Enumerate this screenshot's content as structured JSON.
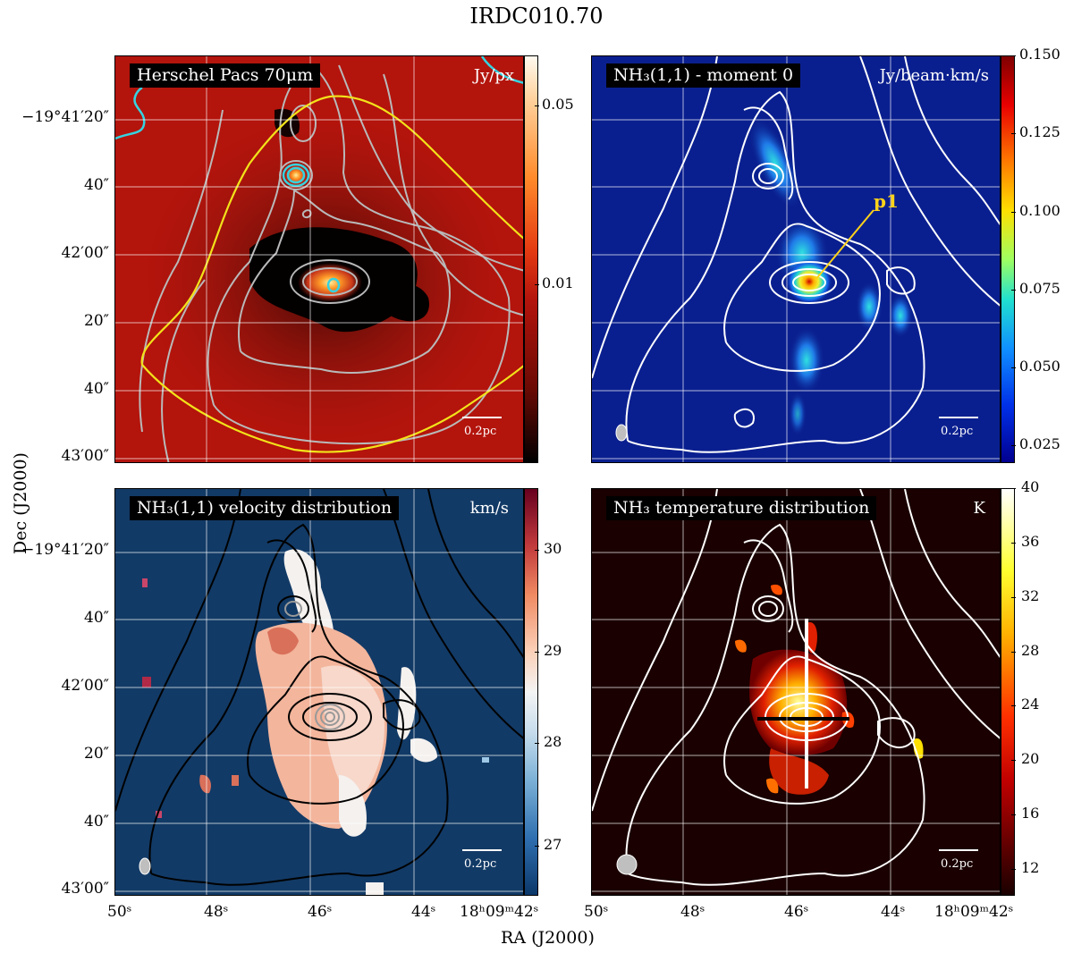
{
  "title": "IRDC010.70",
  "axes": {
    "xlabel": "RA (J2000)",
    "ylabel": "Dec (J2000)",
    "yticks": [
      "−19°41′20″",
      "40″",
      "42′00″",
      "20″",
      "40″",
      "43′00″"
    ],
    "xticks": [
      "50ˢ",
      "48ˢ",
      "46ˢ",
      "44ˢ",
      "18ʰ09ᵐ42ˢ"
    ]
  },
  "panels": [
    {
      "label": "Herschel Pacs 70μm",
      "unit": "Jy/px",
      "scale_label": "0.2pc",
      "colorbar_ticks": [
        "0.05",
        "0.01"
      ]
    },
    {
      "label": "NH₃(1,1) - moment 0",
      "unit": "Jy/beam·km/s",
      "scale_label": "0.2pc",
      "colorbar_ticks": [
        "0.150",
        "0.125",
        "0.100",
        "0.075",
        "0.050",
        "0.025"
      ],
      "annotation": "p1"
    },
    {
      "label": "NH₃(1,1) velocity distribution",
      "unit": "km/s",
      "scale_label": "0.2pc",
      "colorbar_ticks": [
        "30",
        "29",
        "28",
        "27"
      ]
    },
    {
      "label": "NH₃ temperature distribution",
      "unit": "K",
      "scale_label": "0.2pc",
      "colorbar_ticks": [
        "40",
        "36",
        "32",
        "28",
        "24",
        "20",
        "16",
        "12"
      ]
    }
  ],
  "colors": {
    "pacs_bg": "#b3140c",
    "mom0_bg": "#0a1f8f",
    "vel_bg": "#123a66",
    "temp_bg": "#1a0000",
    "yellow": "#f2e21a",
    "cyan": "#35d3e0"
  },
  "chart_data": [
    {
      "type": "heatmap",
      "title": "Herschel Pacs 70μm",
      "colorbar_label": "Jy/px",
      "colorbar_ticks": [
        0.05,
        0.01
      ],
      "colorbar_scale": "log"
    },
    {
      "type": "heatmap",
      "title": "NH₃(1,1) - moment 0",
      "colorbar_label": "Jy/beam·km/s",
      "colorbar_ticks": [
        0.15,
        0.125,
        0.1,
        0.075,
        0.05,
        0.025
      ],
      "colorbar_range": [
        0.02,
        0.15
      ]
    },
    {
      "type": "heatmap",
      "title": "NH₃(1,1) velocity distribution",
      "colorbar_label": "km/s",
      "colorbar_ticks": [
        30,
        29,
        28,
        27
      ],
      "colorbar_range": [
        26.5,
        30.5
      ]
    },
    {
      "type": "heatmap",
      "title": "NH₃ temperature distribution",
      "colorbar_label": "K",
      "colorbar_ticks": [
        40,
        36,
        32,
        28,
        24,
        20,
        16,
        12
      ],
      "colorbar_range": [
        10,
        40
      ]
    }
  ]
}
